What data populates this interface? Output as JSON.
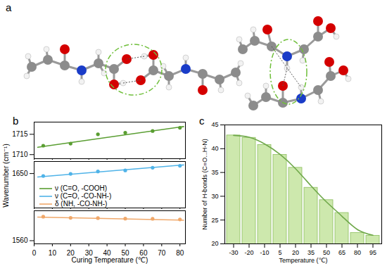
{
  "panel_a": {
    "label": "a"
  },
  "chart_data": [
    {
      "label": "b",
      "type": "scatter",
      "x": [
        5,
        20,
        35,
        50,
        65,
        80
      ],
      "xlim": [
        0,
        83
      ],
      "xticks": [
        0,
        10,
        20,
        30,
        40,
        50,
        60,
        70,
        80
      ],
      "tick_labels": "y",
      "ylim": [
        1709,
        1718
      ],
      "yticks": [
        1710,
        1715
      ],
      "series": [
        {
          "name": "ν (C=O, -COOH)",
          "color": "#5a9e32",
          "marker": "circle",
          "values": [
            1712.2,
            1712.7,
            1715.0,
            1715.4,
            1715.8,
            1716.6
          ],
          "trend": {
            "x": [
              2,
              82
            ],
            "values": [
              1711.8,
              1716.9
            ],
            "line_style": "solid"
          }
        }
      ]
    },
    {
      "type": "scatter",
      "y_label": "Wavenumber (cm⁻¹)",
      "x": [
        5,
        20,
        35,
        50,
        65,
        80
      ],
      "xlim": [
        0,
        83
      ],
      "xticks": [
        0,
        10,
        20,
        30,
        40,
        50,
        60,
        70,
        80
      ],
      "tick_labels": "y",
      "ylim": [
        1630,
        1657
      ],
      "yticks": [
        1650
      ],
      "series": [
        {
          "name": "ν (C=O, -CO-NH-)",
          "color": "#4fb3e8",
          "marker": "circle",
          "values": [
            1648.6,
            1649.8,
            1651.2,
            1651.8,
            1653.4,
            1654.5
          ],
          "trend": {
            "x": [
              2,
              82
            ],
            "values": [
              1648.0,
              1655.0
            ],
            "line_style": "solid"
          }
        }
      ]
    },
    {
      "type": "scatter",
      "x_label": "Curing Temperature (℃)",
      "x": [
        5,
        20,
        35,
        50,
        65,
        80
      ],
      "xlim": [
        0,
        83
      ],
      "xticks": [
        0,
        10,
        20,
        30,
        40,
        50,
        60,
        70,
        80
      ],
      "ylim": [
        1556,
        1598
      ],
      "yticks": [
        1560
      ],
      "series": [
        {
          "name": "δ (NH, -CO-NH-)",
          "color": "#f0a86a",
          "marker": "circle",
          "values": [
            1590.5,
            1589.0,
            1588.7,
            1588.0,
            1587.8,
            1587.0
          ],
          "trend": {
            "x": [
              2,
              82
            ],
            "values": [
              1590.0,
              1586.0
            ],
            "line_style": "solid"
          }
        }
      ]
    },
    {
      "label": "c",
      "type": "bar",
      "x_label": "Temperature (℃)",
      "y_label": "Number of H-bonds (C=O...H-N)",
      "categories": [
        -30,
        -20,
        -10,
        5,
        20,
        35,
        50,
        65,
        80,
        95
      ],
      "values": [
        42.8,
        42.3,
        40.8,
        38.7,
        36.0,
        31.8,
        29.2,
        26.5,
        22.3,
        21.7
      ],
      "color": "#cde8ad",
      "trend": {
        "values": [
          42.8,
          42.4,
          41.0,
          38.8,
          35.8,
          32.2,
          28.8,
          25.8,
          23.0,
          21.8
        ],
        "color": "#6fa84a",
        "line_style": "solid"
      },
      "ylim": [
        20,
        45
      ],
      "yticks": [
        20,
        25,
        30,
        35,
        40,
        45
      ]
    }
  ]
}
